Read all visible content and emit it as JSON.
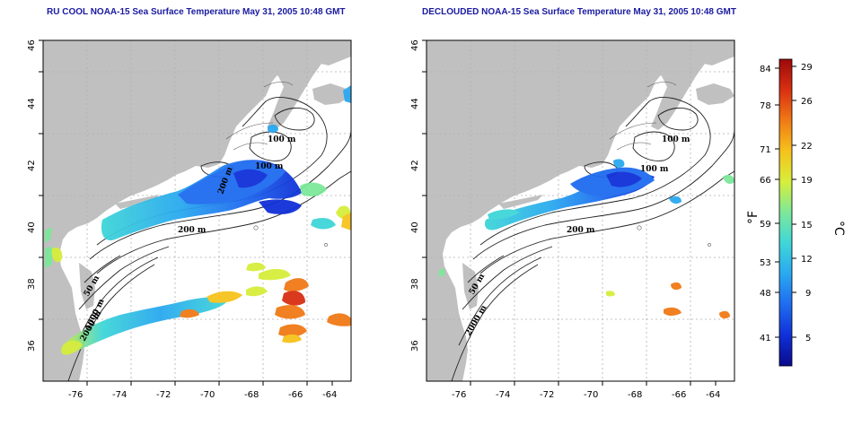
{
  "panels": [
    {
      "title": "RU COOL NOAA-15 Sea Surface Temperature May 31, 2005 10:48 GMT",
      "contour_labels": [
        "100 m",
        "100 m",
        "200 m",
        "200 m",
        "50 m",
        "1000 m",
        "2000 m"
      ]
    },
    {
      "title": "DECLOUDED NOAA-15 Sea Surface Temperature May 31, 2005 10:48 GMT",
      "contour_labels": [
        "100 m",
        "100 m",
        "200 m",
        "50 m",
        "2000 m"
      ]
    }
  ],
  "axes": {
    "lon_ticks": [
      "-76",
      "-74",
      "-72",
      "-70",
      "-68",
      "-66",
      "-64"
    ],
    "lat_ticks": [
      "36",
      "38",
      "40",
      "42",
      "44",
      "46"
    ],
    "lon_range": [
      -77,
      -63
    ],
    "lat_range": [
      35,
      46
    ]
  },
  "colorbar": {
    "fahrenheit_ticks": [
      "84",
      "78",
      "71",
      "66",
      "59",
      "53",
      "48",
      "41"
    ],
    "celsius_ticks": [
      "29",
      "26",
      "22",
      "19",
      "15",
      "12",
      "9",
      "5"
    ],
    "fahrenheit_label": "°F",
    "celsius_label": "°C",
    "colors": [
      "#0a0a8c",
      "#1030d8",
      "#1f6cf0",
      "#2aa8f0",
      "#3fd6d8",
      "#7ce89a",
      "#d6ee3c",
      "#f6c21c",
      "#f07a16",
      "#d83012",
      "#9c0a0a"
    ]
  },
  "colors": {
    "land": "#c0c0c0",
    "grid": "#b0b0b0",
    "title": "#1a1aa0"
  }
}
